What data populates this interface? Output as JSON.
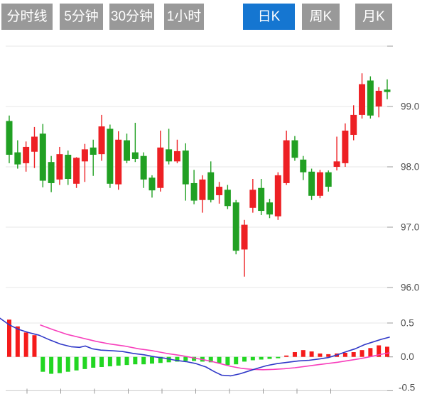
{
  "tabs": [
    {
      "label": "分时线",
      "active": false
    },
    {
      "label": "5分钟",
      "active": false
    },
    {
      "label": "30分钟",
      "active": false
    },
    {
      "label": "1小时",
      "active": false
    },
    {
      "label": "日K",
      "active": true
    },
    {
      "label": "周K",
      "active": false
    },
    {
      "label": "月K",
      "active": false
    }
  ],
  "colors": {
    "tab_gray": "#999999",
    "tab_active_blue": "#1576d1",
    "candle_up_red": "#ed2024",
    "candle_down_green": "#21a023",
    "hist_up_red": "#f51b1b",
    "hist_down_green": "#22d622",
    "dif_line_blue": "#3038c8",
    "dea_line_pink": "#f73fbc",
    "gridline": "#e7e7e7",
    "axis_line": "#c9c9c9",
    "tick": "#999999",
    "axis_text": "#4d4d4d"
  },
  "chart_data": {
    "type": "candlestick",
    "title": "",
    "price_panel": {
      "ylabel": "",
      "ylim": [
        95.8,
        100.0
      ],
      "grid": true,
      "gridline_values": [
        100.0,
        99.0,
        98.0,
        97.0,
        96.0
      ],
      "y_tick_labels": [
        {
          "text": "99.0",
          "value": 99.0
        },
        {
          "text": "98.0",
          "value": 98.0
        },
        {
          "text": "97.0",
          "value": 97.0
        },
        {
          "text": "96.0",
          "value": 96.0
        }
      ],
      "candles_ohlc": [
        [
          98.76,
          98.85,
          98.06,
          98.2
        ],
        [
          98.24,
          98.44,
          97.97,
          98.04
        ],
        [
          98.06,
          98.42,
          97.92,
          98.33
        ],
        [
          98.25,
          98.66,
          97.98,
          98.5
        ],
        [
          98.55,
          98.71,
          97.66,
          97.77
        ],
        [
          98.08,
          98.18,
          97.58,
          97.73
        ],
        [
          97.79,
          98.33,
          97.7,
          98.21
        ],
        [
          98.2,
          98.27,
          97.7,
          97.8
        ],
        [
          97.72,
          98.16,
          97.65,
          98.15
        ],
        [
          98.09,
          98.38,
          97.75,
          98.29
        ],
        [
          98.32,
          98.45,
          97.85,
          98.2
        ],
        [
          98.21,
          98.86,
          98.1,
          98.67
        ],
        [
          98.63,
          98.7,
          97.65,
          97.72
        ],
        [
          97.71,
          98.59,
          97.62,
          98.45
        ],
        [
          98.44,
          98.55,
          98.06,
          98.1
        ],
        [
          98.24,
          98.73,
          98.08,
          98.13
        ],
        [
          98.18,
          98.24,
          97.65,
          97.79
        ],
        [
          97.82,
          97.86,
          97.49,
          97.61
        ],
        [
          97.65,
          98.6,
          97.59,
          98.32
        ],
        [
          98.29,
          98.63,
          98.04,
          98.09
        ],
        [
          98.09,
          98.45,
          98.06,
          98.26
        ],
        [
          98.27,
          98.39,
          97.44,
          97.71
        ],
        [
          97.73,
          97.95,
          97.38,
          97.44
        ],
        [
          97.45,
          97.86,
          97.24,
          97.79
        ],
        [
          97.91,
          98.09,
          97.41,
          97.45
        ],
        [
          97.53,
          97.75,
          97.39,
          97.67
        ],
        [
          97.62,
          97.7,
          97.3,
          97.35
        ],
        [
          97.41,
          97.45,
          96.55,
          96.61
        ],
        [
          96.63,
          97.12,
          96.18,
          97.04
        ],
        [
          97.32,
          97.8,
          97.24,
          97.62
        ],
        [
          97.65,
          97.8,
          97.2,
          97.27
        ],
        [
          97.41,
          97.47,
          97.15,
          97.21
        ],
        [
          97.18,
          97.91,
          97.12,
          97.86
        ],
        [
          97.73,
          98.6,
          97.7,
          98.44
        ],
        [
          98.44,
          98.51,
          98.1,
          98.15
        ],
        [
          98.12,
          98.18,
          97.78,
          97.91
        ],
        [
          97.92,
          97.97,
          97.45,
          97.52
        ],
        [
          97.52,
          97.95,
          97.48,
          97.91
        ],
        [
          97.91,
          97.94,
          97.59,
          97.67
        ],
        [
          98.0,
          98.5,
          97.94,
          98.09
        ],
        [
          98.06,
          98.72,
          98.0,
          98.6
        ],
        [
          98.53,
          99.02,
          98.44,
          98.86
        ],
        [
          98.86,
          99.55,
          98.8,
          99.37
        ],
        [
          99.43,
          99.5,
          98.8,
          98.85
        ],
        [
          99.0,
          99.32,
          98.82,
          99.26
        ],
        [
          99.28,
          99.45,
          99.12,
          99.24
        ]
      ]
    },
    "macd_panel": {
      "ylim": [
        -0.5,
        0.55
      ],
      "grid": true,
      "gridline_values": [
        0.5,
        0.0,
        -0.5
      ],
      "y_tick_labels": [
        {
          "text": "0.5",
          "value": 0.5
        },
        {
          "text": "0.0",
          "value": 0.0
        },
        {
          "text": "-0.5",
          "value": -0.5
        }
      ],
      "histogram": [
        0.55,
        0.45,
        0.36,
        0.32,
        -0.22,
        -0.25,
        -0.24,
        -0.22,
        -0.2,
        -0.18,
        -0.16,
        -0.15,
        -0.14,
        -0.13,
        -0.12,
        -0.11,
        -0.11,
        -0.1,
        -0.09,
        -0.08,
        -0.07,
        -0.06,
        -0.06,
        -0.07,
        -0.08,
        -0.09,
        -0.12,
        -0.11,
        -0.07,
        -0.05,
        -0.04,
        -0.03,
        -0.02,
        0.02,
        0.07,
        0.1,
        0.08,
        0.05,
        0.04,
        0.05,
        0.06,
        0.07,
        0.1,
        0.13,
        0.17,
        0.15
      ],
      "dif_line_x_value": [
        [
          0,
          0.57
        ],
        [
          12,
          0.48
        ],
        [
          25,
          0.41
        ],
        [
          40,
          0.36
        ],
        [
          55,
          0.32
        ],
        [
          70,
          0.25
        ],
        [
          85,
          0.19
        ],
        [
          100,
          0.15
        ],
        [
          112,
          0.14
        ],
        [
          120,
          0.16
        ],
        [
          130,
          0.12
        ],
        [
          142,
          0.1
        ],
        [
          158,
          0.09
        ],
        [
          172,
          0.08
        ],
        [
          188,
          0.05
        ],
        [
          203,
          0.03
        ],
        [
          218,
          0.0
        ],
        [
          232,
          -0.02
        ],
        [
          247,
          -0.05
        ],
        [
          262,
          -0.07
        ],
        [
          276,
          -0.1
        ],
        [
          290,
          -0.15
        ],
        [
          302,
          -0.22
        ],
        [
          312,
          -0.27
        ],
        [
          325,
          -0.28
        ],
        [
          338,
          -0.25
        ],
        [
          350,
          -0.21
        ],
        [
          362,
          -0.17
        ],
        [
          375,
          -0.13
        ],
        [
          390,
          -0.1
        ],
        [
          405,
          -0.08
        ],
        [
          420,
          -0.06
        ],
        [
          435,
          -0.05
        ],
        [
          450,
          -0.03
        ],
        [
          462,
          -0.01
        ],
        [
          475,
          0.03
        ],
        [
          488,
          0.08
        ],
        [
          500,
          0.12
        ],
        [
          513,
          0.18
        ],
        [
          525,
          0.22
        ],
        [
          537,
          0.26
        ],
        [
          548,
          0.29
        ]
      ],
      "dea_line_x_value": [
        [
          57,
          0.47
        ],
        [
          75,
          0.4
        ],
        [
          95,
          0.33
        ],
        [
          115,
          0.28
        ],
        [
          135,
          0.23
        ],
        [
          155,
          0.19
        ],
        [
          175,
          0.16
        ],
        [
          195,
          0.12
        ],
        [
          215,
          0.09
        ],
        [
          235,
          0.05
        ],
        [
          255,
          0.02
        ],
        [
          275,
          -0.02
        ],
        [
          295,
          -0.06
        ],
        [
          310,
          -0.1
        ],
        [
          325,
          -0.14
        ],
        [
          340,
          -0.17
        ],
        [
          355,
          -0.185
        ],
        [
          370,
          -0.19
        ],
        [
          385,
          -0.185
        ],
        [
          400,
          -0.175
        ],
        [
          415,
          -0.16
        ],
        [
          430,
          -0.14
        ],
        [
          445,
          -0.12
        ],
        [
          460,
          -0.1
        ],
        [
          475,
          -0.08
        ],
        [
          490,
          -0.055
        ],
        [
          505,
          -0.03
        ],
        [
          520,
          0.0
        ],
        [
          535,
          0.035
        ],
        [
          548,
          0.06
        ]
      ]
    },
    "x_axis": {
      "tick_xs": [
        38,
        85.5,
        133,
        180.5,
        228,
        275.5,
        323,
        370.5,
        418,
        465.5
      ]
    }
  }
}
